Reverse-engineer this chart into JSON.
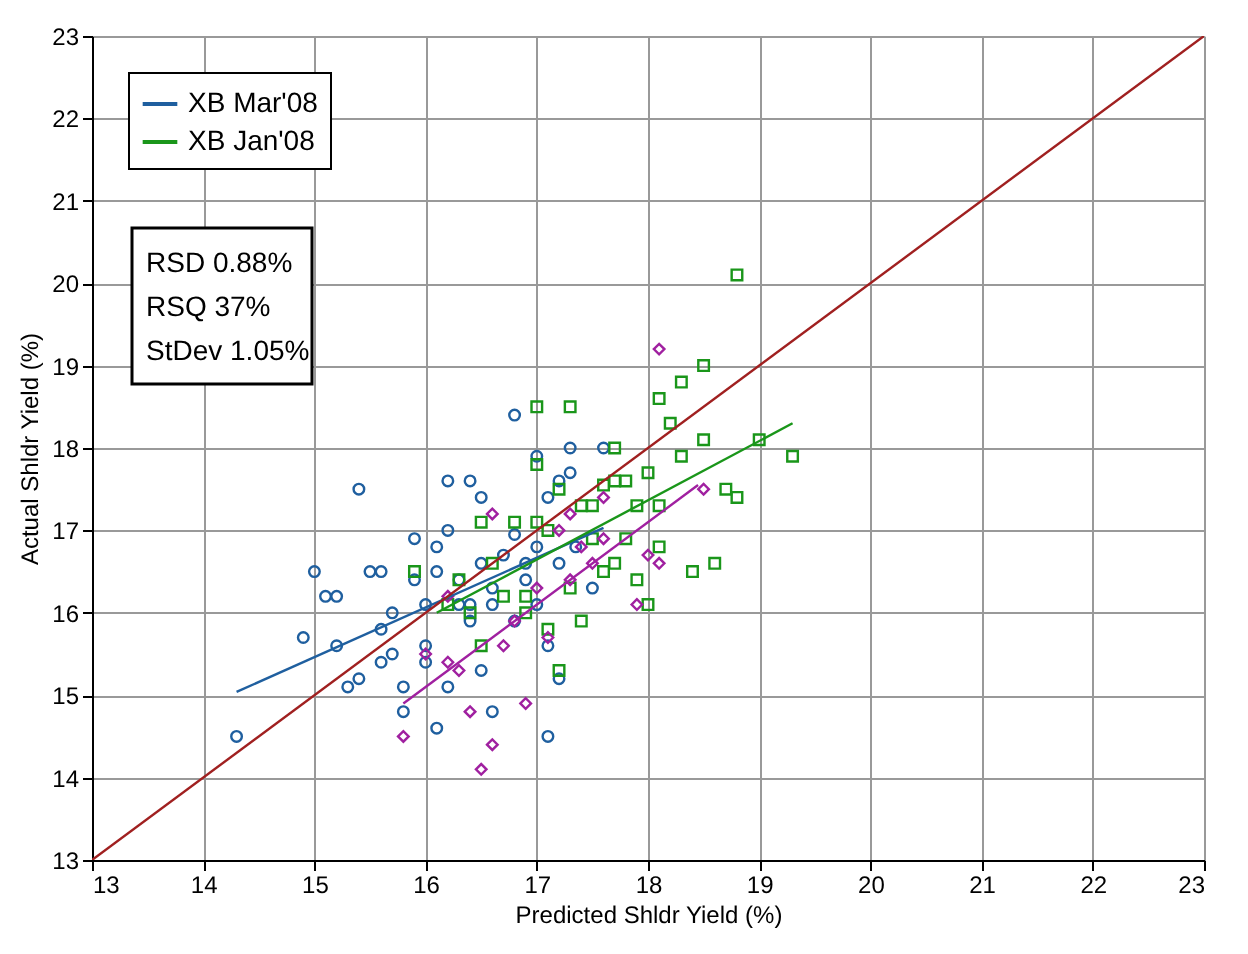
{
  "chart_data": {
    "type": "scatter",
    "xlabel": "Predicted Shldr Yield (%)",
    "ylabel": "Actual Shldr Yield (%)",
    "xlim": [
      13,
      23
    ],
    "ylim": [
      13,
      23
    ],
    "xticks": [
      13,
      14,
      15,
      16,
      17,
      18,
      19,
      20,
      21,
      22,
      23
    ],
    "yticks": [
      13,
      14,
      15,
      16,
      17,
      18,
      19,
      20,
      21,
      22,
      23
    ],
    "grid": true,
    "legend": "top left",
    "annotations": [
      "RSD 0.88%",
      "RSQ 37%",
      "StDev 1.05%"
    ],
    "series": [
      {
        "name": "XB Mar'08",
        "marker": "circle",
        "color": "#1f5f9f",
        "x": [
          14.3,
          15.0,
          15.1,
          15.2,
          15.3,
          15.4,
          15.4,
          15.5,
          15.6,
          15.6,
          15.7,
          15.7,
          15.8,
          15.8,
          15.9,
          15.9,
          16.0,
          16.0,
          16.1,
          16.1,
          16.2,
          16.2,
          16.3,
          16.3,
          16.4,
          16.4,
          16.5,
          16.5,
          16.6,
          16.6,
          16.7,
          16.8,
          16.8,
          16.9,
          17.0,
          17.0,
          17.1,
          17.1,
          17.2,
          17.2,
          17.3,
          17.3,
          17.35,
          17.5,
          17.6,
          17.1,
          16.9,
          16.6,
          16.4,
          16.0,
          15.2,
          14.9,
          15.6,
          16.8,
          16.2,
          17.0,
          16.5,
          16.1,
          17.2
        ],
        "values": [
          14.5,
          16.5,
          16.2,
          16.2,
          15.1,
          17.5,
          15.2,
          16.5,
          16.5,
          15.8,
          16.0,
          15.5,
          14.8,
          15.1,
          16.4,
          16.9,
          16.1,
          15.6,
          16.5,
          16.8,
          17.6,
          17.0,
          16.4,
          16.1,
          17.6,
          15.9,
          16.6,
          15.3,
          16.1,
          14.8,
          16.7,
          16.95,
          18.4,
          16.4,
          16.8,
          16.1,
          15.6,
          14.5,
          16.6,
          17.6,
          18.0,
          17.7,
          16.8,
          16.3,
          18.0,
          17.4,
          16.6,
          16.3,
          16.1,
          15.4,
          15.6,
          15.7,
          15.4,
          15.9,
          15.1,
          17.9,
          17.4,
          14.6,
          15.2
        ]
      },
      {
        "name": "XB Jan'08",
        "marker": "square",
        "color": "#1a961a",
        "x": [
          15.9,
          16.2,
          16.3,
          16.4,
          16.5,
          16.6,
          16.7,
          16.8,
          16.9,
          17.0,
          17.0,
          17.1,
          17.2,
          17.3,
          17.3,
          17.4,
          17.5,
          17.5,
          17.6,
          17.7,
          17.7,
          17.8,
          17.8,
          17.9,
          18.0,
          18.0,
          18.1,
          18.1,
          18.2,
          18.3,
          18.4,
          18.5,
          18.5,
          18.6,
          18.7,
          18.8,
          18.8,
          19.0,
          19.3,
          17.2,
          17.4,
          17.7,
          16.5,
          17.9,
          18.1,
          17.0,
          16.9,
          17.6,
          18.3,
          17.1
        ],
        "values": [
          16.5,
          16.1,
          16.4,
          16.0,
          17.1,
          16.6,
          16.2,
          17.1,
          16.0,
          17.8,
          18.5,
          17.0,
          17.5,
          16.3,
          18.5,
          17.3,
          16.9,
          17.3,
          16.5,
          17.6,
          18.0,
          17.6,
          16.9,
          17.3,
          16.1,
          17.7,
          18.6,
          17.3,
          18.3,
          17.9,
          16.5,
          19.0,
          18.1,
          16.6,
          17.5,
          20.1,
          17.4,
          18.1,
          17.9,
          15.3,
          15.9,
          16.6,
          15.6,
          16.4,
          16.8,
          17.1,
          16.2,
          17.55,
          18.8,
          15.8
        ]
      },
      {
        "marker": "diamond",
        "color": "#a020a0",
        "x": [
          15.8,
          16.0,
          16.2,
          16.3,
          16.4,
          16.5,
          16.6,
          16.6,
          16.7,
          16.9,
          17.0,
          17.1,
          17.2,
          17.3,
          17.4,
          17.5,
          17.6,
          17.9,
          18.0,
          18.1,
          18.1,
          18.5,
          16.8,
          17.3,
          16.2,
          17.6
        ],
        "values": [
          14.5,
          15.5,
          16.2,
          15.3,
          14.8,
          14.1,
          14.4,
          17.2,
          15.6,
          14.9,
          16.3,
          15.7,
          17.0,
          16.4,
          16.8,
          16.6,
          17.4,
          16.1,
          16.7,
          19.2,
          16.6,
          17.5,
          15.9,
          17.2,
          15.4,
          16.9
        ]
      },
      {
        "type": "line",
        "color": "#1f5f9f",
        "x": [
          14.3,
          17.6
        ],
        "values": [
          15.04,
          17.03
        ]
      },
      {
        "type": "line",
        "color": "#1a961a",
        "x": [
          16.1,
          19.3
        ],
        "values": [
          16.0,
          18.3
        ]
      },
      {
        "type": "line",
        "color": "#a020a0",
        "x": [
          15.8,
          18.45
        ],
        "values": [
          14.9,
          17.55
        ]
      },
      {
        "type": "line",
        "color": "#a02020",
        "x": [
          13,
          23
        ],
        "values": [
          13,
          23
        ]
      }
    ]
  }
}
